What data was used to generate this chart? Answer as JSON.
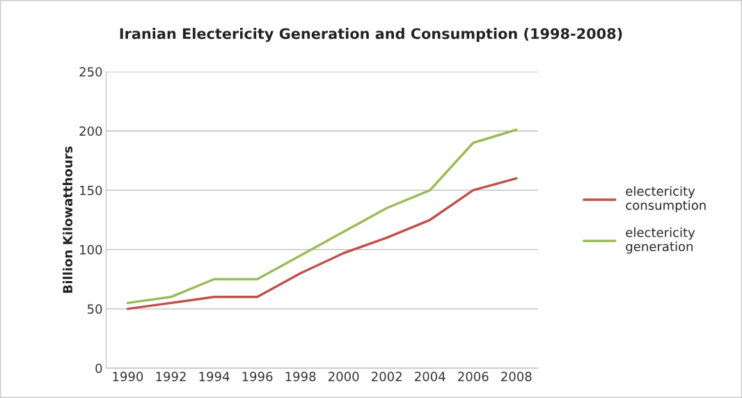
{
  "chart_data": {
    "type": "line",
    "title": "Iranian Electericity Generation and Consumption (1998-2008)",
    "ylabel": "Billion Kilowatthours",
    "categories": [
      "1990",
      "1992",
      "1994",
      "1996",
      "1998",
      "2000",
      "2002",
      "2004",
      "2006",
      "2008"
    ],
    "series": [
      {
        "name": "electericity\nconsumption",
        "color": "#c0504d",
        "values": [
          50,
          55,
          60,
          60,
          80,
          97,
          110,
          125,
          150,
          160
        ]
      },
      {
        "name": "electericity\ngeneration",
        "color": "#9bbb59",
        "values": [
          55,
          60,
          75,
          75,
          95,
          115,
          135,
          150,
          190,
          201
        ]
      }
    ],
    "ylim": [
      0,
      250
    ],
    "yticks": [
      0,
      50,
      100,
      150,
      200,
      250
    ],
    "grid": "y",
    "legend": "right",
    "marker": "none",
    "line_style": "solid"
  }
}
